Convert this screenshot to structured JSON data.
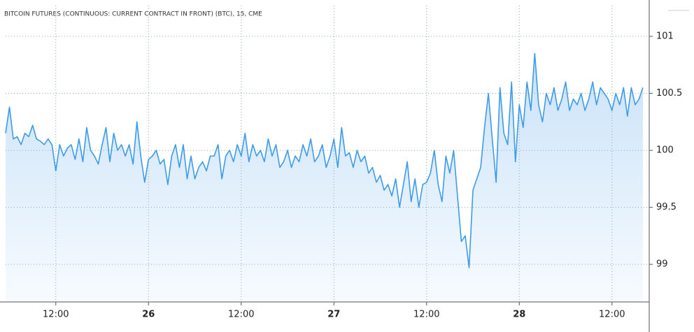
{
  "chart_data": {
    "type": "area",
    "title": "BITCOIN FUTURES (CONTINUOUS: CURRENT CONTRACT IN FRONT) (BTC), 15, CME",
    "categories": [
      null,
      null,
      null,
      null,
      null,
      null,
      null,
      null,
      null,
      null,
      null,
      null,
      null,
      "12:00",
      null,
      null,
      null,
      null,
      null,
      null,
      null,
      null,
      null,
      null,
      null,
      null,
      null,
      null,
      null,
      null,
      null,
      null,
      null,
      null,
      null,
      null,
      null,
      "26",
      null,
      null,
      null,
      null,
      null,
      null,
      null,
      null,
      null,
      null,
      null,
      null,
      null,
      null,
      null,
      null,
      null,
      null,
      null,
      null,
      null,
      null,
      null,
      "12:00",
      null,
      null,
      null,
      null,
      null,
      null,
      null,
      null,
      null,
      null,
      null,
      null,
      null,
      null,
      null,
      null,
      null,
      null,
      null,
      null,
      null,
      null,
      null,
      "27",
      null,
      null,
      null,
      null,
      null,
      null,
      null,
      null,
      null,
      null,
      null,
      null,
      null,
      null,
      null,
      null,
      null,
      null,
      null,
      null,
      null,
      null,
      null,
      "12:00",
      null,
      null,
      null,
      null,
      null,
      null,
      null,
      null,
      null,
      null,
      null,
      null,
      null,
      null,
      null,
      null,
      null,
      null,
      null,
      null,
      null,
      null,
      null,
      "28",
      null,
      null,
      null,
      null,
      null,
      null,
      null,
      null,
      null,
      null,
      null,
      null,
      null,
      null,
      null,
      null,
      null,
      null,
      null,
      null,
      null,
      null,
      null,
      "12:00",
      null,
      null,
      null,
      null,
      null,
      null,
      null,
      null
    ],
    "series": [
      {
        "color": "#3d9be9",
        "values": [
          100.15,
          100.38,
          100.1,
          100.12,
          100.05,
          100.15,
          100.12,
          100.22,
          100.1,
          100.08,
          100.05,
          100.1,
          100.05,
          99.82,
          100.05,
          99.95,
          100.02,
          100.05,
          99.92,
          100.1,
          99.9,
          100.2,
          100.0,
          99.95,
          99.88,
          100.05,
          100.2,
          99.9,
          100.15,
          100.0,
          100.05,
          99.95,
          100.05,
          99.88,
          100.25,
          99.95,
          99.72,
          99.92,
          99.95,
          100.0,
          99.88,
          99.92,
          99.7,
          99.95,
          100.05,
          99.85,
          100.05,
          99.75,
          99.95,
          99.75,
          99.85,
          99.9,
          99.82,
          99.95,
          99.95,
          100.05,
          99.75,
          99.95,
          100.0,
          99.9,
          100.05,
          99.95,
          100.15,
          99.9,
          100.05,
          99.95,
          100.0,
          99.9,
          100.1,
          99.95,
          100.05,
          99.85,
          99.9,
          100.0,
          99.85,
          99.95,
          99.9,
          100.05,
          99.95,
          100.1,
          99.9,
          99.95,
          100.05,
          99.85,
          99.95,
          100.1,
          99.85,
          100.2,
          99.95,
          99.98,
          99.85,
          100.0,
          99.9,
          99.95,
          99.8,
          99.85,
          99.72,
          99.78,
          99.65,
          99.7,
          99.6,
          99.75,
          99.5,
          99.7,
          99.9,
          99.55,
          99.75,
          99.5,
          99.7,
          99.72,
          99.8,
          100.0,
          99.7,
          99.55,
          99.95,
          99.8,
          100.0,
          99.6,
          99.2,
          99.25,
          98.97,
          99.65,
          99.75,
          99.85,
          100.2,
          100.5,
          100.1,
          99.72,
          100.55,
          100.15,
          100.05,
          100.6,
          99.9,
          100.4,
          100.2,
          100.6,
          100.35,
          100.85,
          100.4,
          100.25,
          100.5,
          100.4,
          100.55,
          100.35,
          100.45,
          100.6,
          100.35,
          100.45,
          100.4,
          100.5,
          100.35,
          100.45,
          100.6,
          100.4,
          100.55,
          100.5,
          100.45,
          100.35,
          100.5,
          100.4,
          100.55,
          100.3,
          100.55,
          100.4,
          100.45,
          100.55
        ]
      }
    ],
    "ylim": [
      98.67,
      101.27
    ],
    "yticks": [
      99,
      99.5,
      100,
      100.5,
      101
    ],
    "grid": true
  }
}
